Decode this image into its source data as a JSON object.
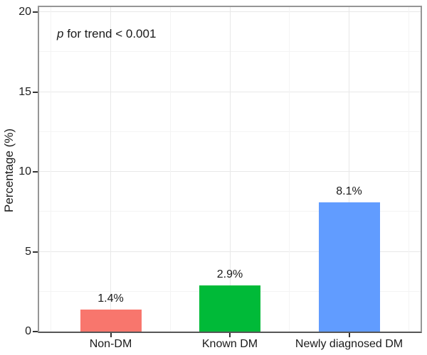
{
  "chart_data": {
    "type": "bar",
    "title": "",
    "xlabel": "",
    "ylabel": "Percentage (%)",
    "categories": [
      "Non-DM",
      "Known DM",
      "Newly diagnosed DM"
    ],
    "values": [
      1.4,
      2.9,
      8.1
    ],
    "value_labels": [
      "1.4%",
      "2.9%",
      "8.1%"
    ],
    "bar_colors": [
      "#F8766D",
      "#00BA38",
      "#619CFF"
    ],
    "ylim": [
      0,
      20
    ],
    "yticks": [
      0,
      5,
      10,
      15,
      20
    ],
    "ytick_labels": [
      "0",
      "5",
      "10",
      "15",
      "20"
    ],
    "yticks_minor": [
      2.5,
      7.5,
      12.5,
      17.5
    ],
    "grid": "on",
    "legend": "none",
    "annotation": {
      "italic": "p",
      "text": " for trend < 0.001"
    }
  },
  "colors": {
    "panel_border": "#969696",
    "axis_line": "#565656",
    "grid_major": "#e8e8e8",
    "grid_minor": "#f4f4f4",
    "tick_mark": "#333333",
    "text": "#1a1a1a",
    "background": "#ffffff"
  }
}
